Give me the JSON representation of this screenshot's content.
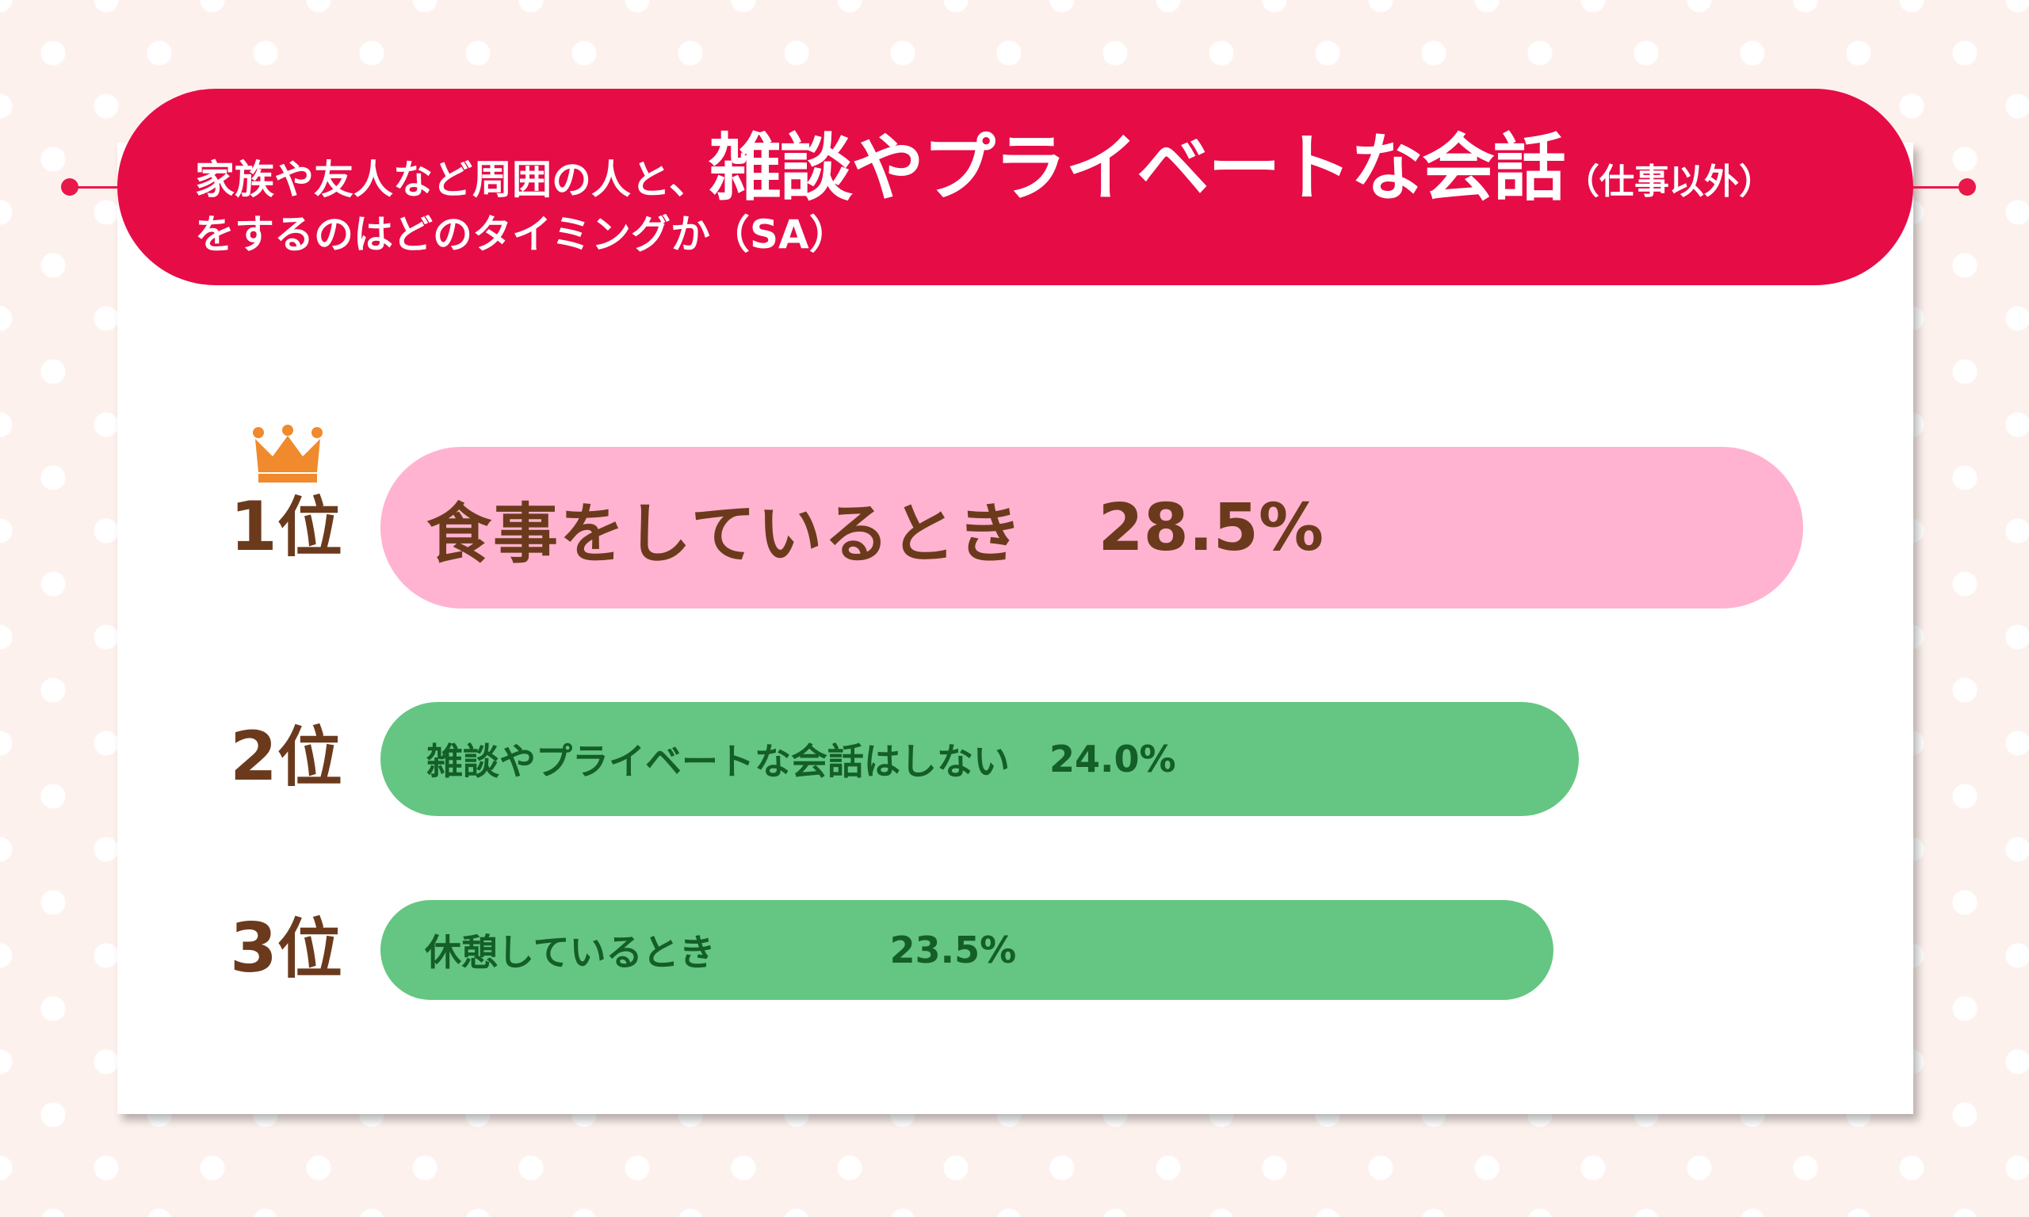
{
  "header": {
    "line1_prefix": "家族や友人など周囲の人と、",
    "line1_emphasis": "雑談やプライベートな会話",
    "line1_paren": "（仕事以外）",
    "line2": "をするのはどのタイミングか（SA）"
  },
  "colors": {
    "header_bg": "#e60c46",
    "first_bar": "#ffb3d1",
    "other_bars": "#64c682",
    "rank_text": "#6b3a1c",
    "first_text": "#6b3a1c",
    "other_text": "#145e28",
    "crown": "#f08a2c"
  },
  "icons": {
    "first_place": "crown-icon"
  },
  "chart_data": {
    "type": "bar",
    "orientation": "horizontal",
    "title": "家族や友人など周囲の人と、雑談やプライベートな会話（仕事以外）をするのはどのタイミングか（SA）",
    "unit": "%",
    "items": [
      {
        "rank": "1",
        "rank_suffix": "位",
        "label": "食事をしているとき",
        "value": 28.5,
        "value_label": "28.5%"
      },
      {
        "rank": "2",
        "rank_suffix": "位",
        "label": "雑談やプライベートな会話はしない",
        "value": 24.0,
        "value_label": "24.0%"
      },
      {
        "rank": "3",
        "rank_suffix": "位",
        "label": "休憩しているとき",
        "value": 23.5,
        "value_label": "23.5%"
      }
    ]
  }
}
